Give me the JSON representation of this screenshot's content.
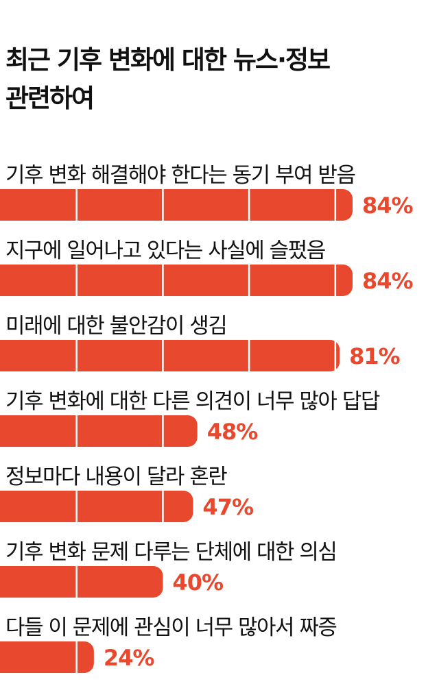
{
  "title_lines": [
    "최근 기후 변화에 대한 뉴스·정보",
    "관련하여"
  ],
  "colors": {
    "bar": "#e8482d",
    "value": "#e8482d",
    "divider": "#ffffff",
    "text": "#111111"
  },
  "chart_data": {
    "type": "bar",
    "orientation": "horizontal",
    "title": "최근 기후 변화에 대한 뉴스·정보 관련하여",
    "unit": "%",
    "xlim": [
      0,
      84
    ],
    "segment_step": 20,
    "categories": [
      "기후 변화 해결해야 한다는 동기 부여 받음",
      "지구에 일어나고 있다는 사실에 슬펐음",
      "미래에 대한 불안감이 생김",
      "기후 변화에 대한 다른 의견이 너무 많아 답답",
      "정보마다 내용이 달라 혼란",
      "기후 변화 문제 다루는 단체에 대한 의심",
      "다들 이 문제에 관심이 너무 많아서 짜증"
    ],
    "values": [
      84,
      84,
      81,
      48,
      47,
      40,
      24
    ],
    "value_labels": [
      "84%",
      "84%",
      "81%",
      "48%",
      "47%",
      "40%",
      "24%"
    ]
  }
}
